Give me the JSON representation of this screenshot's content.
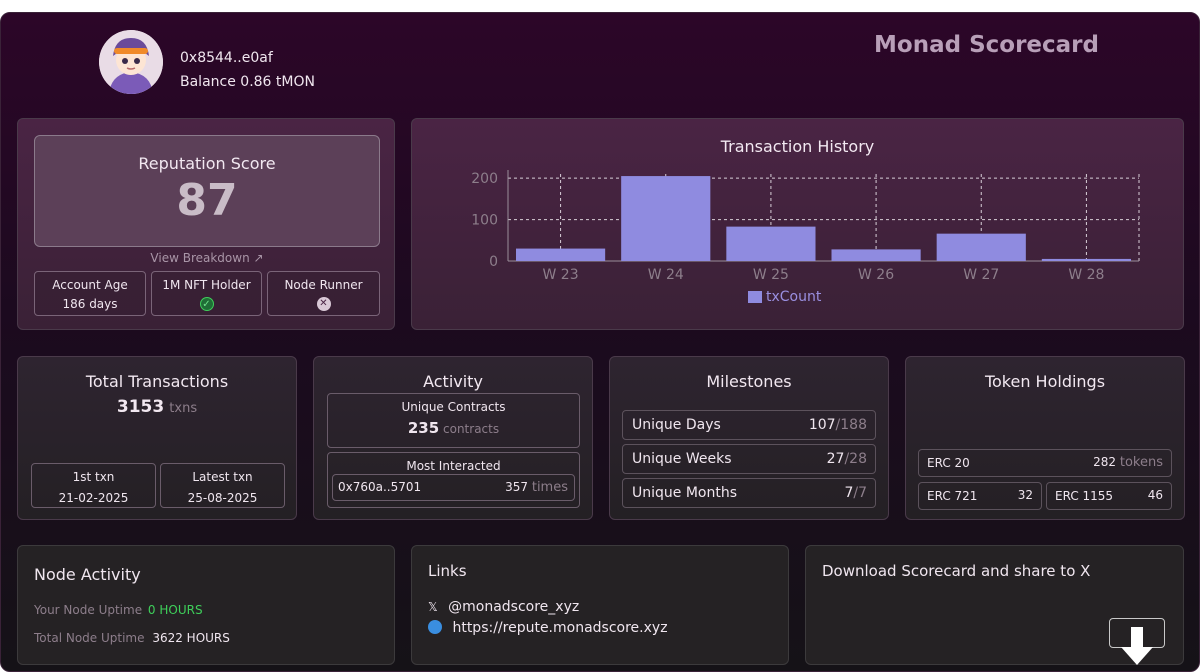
{
  "header": {
    "wallet": "0x8544..e0af",
    "balance": "Balance 0.86 tMON",
    "title": "Monad Scorecard"
  },
  "reputation": {
    "label": "Reputation Score",
    "score": "87",
    "breakdown_link": "View Breakdown",
    "badges": [
      {
        "label": "Account Age",
        "value": "186 days"
      },
      {
        "label": "1M NFT Holder",
        "status": "yes"
      },
      {
        "label": "Node Runner",
        "status": "no"
      }
    ]
  },
  "chart_data": {
    "type": "bar",
    "title": "Transaction History",
    "categories": [
      "W 23",
      "W 24",
      "W 25",
      "W 26",
      "W 27",
      "W 28"
    ],
    "series": [
      {
        "name": "txCount",
        "values": [
          30,
          205,
          83,
          28,
          66,
          5
        ]
      }
    ],
    "ylim": [
      0,
      210
    ],
    "yticks": [
      0,
      100,
      200
    ],
    "grid": true,
    "legend": "bottom",
    "color": "#8f8be0"
  },
  "total_transactions": {
    "title": "Total Transactions",
    "count": "3153",
    "unit": "txns",
    "first_label": "1st txn",
    "first_date": "21-02-2025",
    "latest_label": "Latest txn",
    "latest_date": "25-08-2025"
  },
  "activity": {
    "title": "Activity",
    "unique_label": "Unique Contracts",
    "unique_count": "235",
    "unique_unit": "contracts",
    "most_label": "Most Interacted",
    "most_address": "0x760a..5701",
    "most_count": "357",
    "most_unit": "times"
  },
  "milestones": {
    "title": "Milestones",
    "rows": [
      {
        "label": "Unique Days",
        "value": "107",
        "total": "/188"
      },
      {
        "label": "Unique Weeks",
        "value": "27",
        "total": "/28"
      },
      {
        "label": "Unique Months",
        "value": "7",
        "total": "/7"
      }
    ]
  },
  "tokens": {
    "title": "Token Holdings",
    "erc20_label": "ERC 20",
    "erc20_value": "282",
    "erc20_unit": "tokens",
    "erc721_label": "ERC 721",
    "erc721_value": "32",
    "erc1155_label": "ERC 1155",
    "erc1155_value": "46"
  },
  "node": {
    "title": "Node Activity",
    "your_label": "Your Node Uptime",
    "your_value": "0 HOURS",
    "total_label": "Total Node Uptime",
    "total_value": "3622 HOURS",
    "accent": "#3ecf5a"
  },
  "links": {
    "title": "Links",
    "x_icon": "𝕏",
    "x_handle": "@monadscore_xyz",
    "web_icon": "globe-icon",
    "website": "https://repute.monadscore.xyz"
  },
  "download": {
    "title": "Download Scorecard and share to X",
    "icon": "download-arrow-icon"
  }
}
